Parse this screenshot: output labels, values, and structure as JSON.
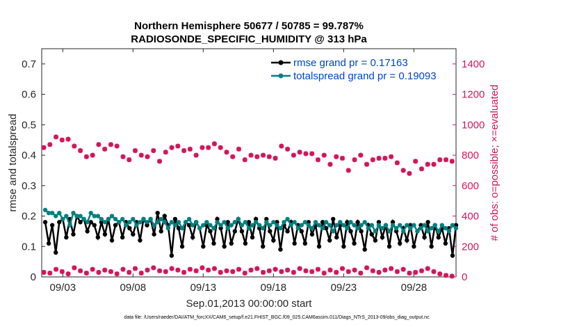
{
  "chart_data": {
    "type": "line",
    "title_line1": "Northern Hemisphere 50677 / 50785 = 99.787%",
    "title_line2": "RADIOSONDE_SPECIFIC_HUMIDITY @ 313 hPa",
    "ylabel_left": "rmse and totalspread",
    "ylabel_right": "# of obs: o=possible; ×=evaluated",
    "xlabel": "Sep.01,2013 00:00:00 start",
    "footer": "data file: /Users/raeder/DAI/ATM_forcXX/CAM6_setup/f.e21.FHIST_BGC.f09_025.CAM6assim.011/Diags_NTrS_2013-09/obs_diag_output.nc",
    "xlim": [
      1.5,
      31.0
    ],
    "ylim_left": [
      0,
      0.75
    ],
    "ylim_right": [
      0,
      1500
    ],
    "xticks": [
      3,
      8,
      13,
      18,
      23,
      28
    ],
    "xtick_labels": [
      "09/03",
      "09/08",
      "09/13",
      "09/18",
      "09/23",
      "09/28"
    ],
    "yticks_left": [
      "0",
      "0.1",
      "0.2",
      "0.3",
      "0.4",
      "0.5",
      "0.6",
      "0.7"
    ],
    "yticks_right": [
      "0",
      "200",
      "400",
      "600",
      "800",
      "1000",
      "1200",
      "1400"
    ],
    "legend": [
      "rmse grand pr = 0.17163",
      "totalspread grand pr = 0.19093"
    ],
    "colors": {
      "rmse": "#000000",
      "spread": "#008080",
      "obs": "#d4145a",
      "legend_text": "#0044cc"
    },
    "series": [
      {
        "name": "rmse",
        "values": [
          0.18,
          0.11,
          0.17,
          0.08,
          0.18,
          0.19,
          0.13,
          0.19,
          0.14,
          0.2,
          0.18,
          0.19,
          0.15,
          0.18,
          0.17,
          0.13,
          0.18,
          0.14,
          0.19,
          0.12,
          0.17,
          0.18,
          0.13,
          0.18,
          0.16,
          0.14,
          0.18,
          0.12,
          0.19,
          0.17,
          0.19,
          0.14,
          0.21,
          0.15,
          0.2,
          0.17,
          0.07,
          0.19,
          0.16,
          0.1,
          0.18,
          0.17,
          0.13,
          0.18,
          0.16,
          0.1,
          0.17,
          0.15,
          0.11,
          0.19,
          0.16,
          0.1,
          0.18,
          0.11,
          0.15,
          0.19,
          0.15,
          0.11,
          0.18,
          0.13,
          0.19,
          0.16,
          0.1,
          0.19,
          0.15,
          0.12,
          0.18,
          0.09,
          0.17,
          0.15,
          0.18,
          0.11,
          0.17,
          0.15,
          0.11,
          0.18,
          0.14,
          0.17,
          0.1,
          0.18,
          0.16,
          0.12,
          0.19,
          0.13,
          0.17,
          0.1,
          0.18,
          0.15,
          0.11,
          0.18,
          0.15,
          0.09,
          0.17,
          0.14,
          0.12,
          0.18,
          0.13,
          0.17,
          0.1,
          0.18,
          0.15,
          0.11,
          0.16,
          0.12,
          0.17,
          0.1,
          0.15,
          0.17,
          0.13,
          0.18,
          0.1,
          0.17,
          0.13,
          0.16,
          0.11,
          0.16,
          0.07,
          0.17,
          0.14,
          0.1,
          0.18,
          0.15,
          0.11,
          0.17,
          0.13,
          0.09,
          0.17,
          0.12,
          0.16,
          0.07
        ]
      },
      {
        "name": "totalspread",
        "values": [
          0.22,
          0.21,
          0.21,
          0.2,
          0.21,
          0.19,
          0.2,
          0.17,
          0.21,
          0.2,
          0.2,
          0.19,
          0.18,
          0.21,
          0.2,
          0.2,
          0.19,
          0.18,
          0.19,
          0.2,
          0.19,
          0.18,
          0.19,
          0.17,
          0.18,
          0.19,
          0.17,
          0.18,
          0.19,
          0.18,
          0.19,
          0.17,
          0.18,
          0.19,
          0.18,
          0.16,
          0.18,
          0.17,
          0.18,
          0.16,
          0.18,
          0.19,
          0.17,
          0.18,
          0.16,
          0.17,
          0.18,
          0.17,
          0.16,
          0.18,
          0.17,
          0.18,
          0.16,
          0.17,
          0.18,
          0.19,
          0.17,
          0.18,
          0.16,
          0.17,
          0.18,
          0.17,
          0.16,
          0.18,
          0.17,
          0.18,
          0.17,
          0.16,
          0.18,
          0.19,
          0.17,
          0.18,
          0.16,
          0.17,
          0.18,
          0.17,
          0.16,
          0.18,
          0.17,
          0.16,
          0.18,
          0.17,
          0.15,
          0.17,
          0.18,
          0.17,
          0.16,
          0.18,
          0.17,
          0.16,
          0.17,
          0.18,
          0.16,
          0.17,
          0.15,
          0.17,
          0.16,
          0.17,
          0.15,
          0.17,
          0.16,
          0.17,
          0.15,
          0.17,
          0.16,
          0.17,
          0.15,
          0.16,
          0.17,
          0.15,
          0.16,
          0.17,
          0.15,
          0.17,
          0.16,
          0.15,
          0.17,
          0.16,
          0.15,
          0.17,
          0.16,
          0.17,
          0.15,
          0.16,
          0.17,
          0.16,
          0.15,
          0.17,
          0.16,
          0.15
        ]
      },
      {
        "name": "obs_possible",
        "values": [
          850,
          870,
          920,
          900,
          905,
          860,
          830,
          790,
          800,
          870,
          840,
          870,
          860,
          790,
          770,
          830,
          800,
          790,
          830,
          760,
          820,
          850,
          860,
          830,
          840,
          800,
          850,
          850,
          875,
          850,
          820,
          790,
          840,
          770,
          800,
          790,
          800,
          790,
          780,
          860,
          840,
          800,
          820,
          810,
          810,
          770,
          800,
          740,
          790,
          780,
          700,
          770,
          800,
          740,
          770,
          780,
          780,
          790,
          750,
          700,
          680,
          760,
          710,
          740,
          740,
          770,
          770,
          760
        ]
      },
      {
        "name": "obs_evaluated",
        "values": [
          30,
          25,
          50,
          35,
          20,
          60,
          40,
          25,
          50,
          30,
          45,
          35,
          20,
          50,
          30,
          55,
          25,
          45,
          60,
          40,
          35,
          55,
          45,
          30,
          50,
          40,
          60,
          45,
          55,
          30,
          40,
          35,
          50,
          25,
          45,
          55,
          30,
          40,
          50,
          35,
          45,
          30,
          55,
          40,
          35,
          50,
          25,
          45,
          30,
          55,
          35,
          45,
          25,
          60,
          40,
          30,
          45,
          55,
          35,
          50,
          25,
          30,
          40,
          55,
          35,
          20,
          10,
          5
        ]
      }
    ]
  }
}
